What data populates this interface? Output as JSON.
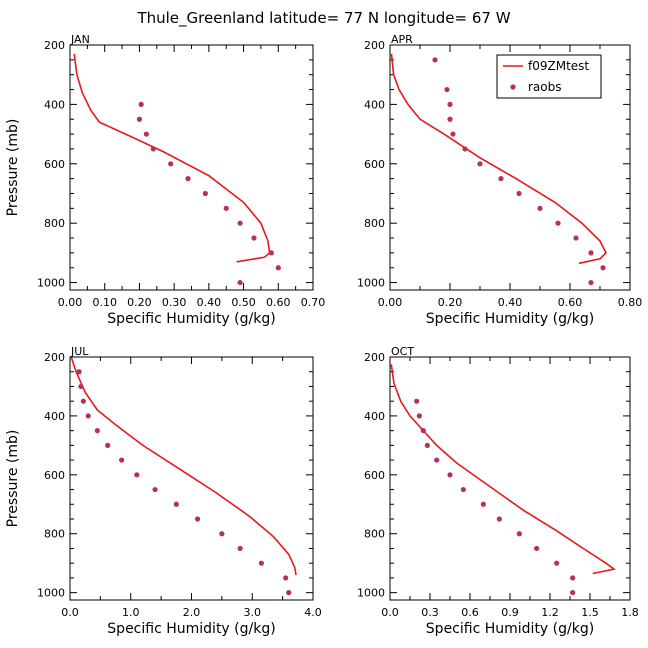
{
  "title": "Thule_Greenland   latitude= 77 N longitude= 67 W",
  "colors": {
    "model": "#e8171b",
    "obs": "#b8305a"
  },
  "legend": {
    "model": "f09ZMtest",
    "obs": "raobs"
  },
  "chart_data": [
    {
      "type": "line",
      "panel": "JAN",
      "xlabel": "Specific Humidity (g/kg)",
      "ylabel": "Pressure (mb)",
      "xlim": [
        0,
        0.7
      ],
      "ylim": [
        200,
        1025
      ],
      "xticks": [
        0,
        0.1,
        0.2,
        0.3,
        0.4,
        0.5,
        0.6,
        0.7
      ],
      "xtick_labels": [
        "0.00",
        "0.10",
        "0.20",
        "0.30",
        "0.40",
        "0.50",
        "0.60",
        "0.70"
      ],
      "yticks": [
        200,
        400,
        600,
        800,
        1000
      ],
      "ytick_labels": [
        "200",
        "400",
        "600",
        "800",
        "1000"
      ],
      "series": [
        {
          "name": "f09ZMtest",
          "kind": "line",
          "x": [
            0.012,
            0.02,
            0.035,
            0.06,
            0.085,
            0.16,
            0.27,
            0.4,
            0.5,
            0.55,
            0.57,
            0.575,
            0.56,
            0.48
          ],
          "y": [
            230,
            300,
            360,
            420,
            460,
            500,
            560,
            640,
            730,
            800,
            860,
            900,
            915,
            930
          ]
        },
        {
          "name": "raobs",
          "kind": "scatter",
          "x": [
            0.205,
            0.2,
            0.22,
            0.24,
            0.29,
            0.34,
            0.39,
            0.45,
            0.49,
            0.53,
            0.58,
            0.6,
            0.49
          ],
          "y": [
            400,
            450,
            500,
            550,
            600,
            650,
            700,
            750,
            800,
            850,
            900,
            950,
            1000
          ]
        }
      ]
    },
    {
      "type": "line",
      "panel": "APR",
      "xlabel": "Specific Humidity (g/kg)",
      "ylabel": "Pressure (mb)",
      "xlim": [
        0,
        0.8
      ],
      "ylim": [
        200,
        1025
      ],
      "xticks": [
        0,
        0.2,
        0.4,
        0.6,
        0.8
      ],
      "xtick_labels": [
        "0.00",
        "0.20",
        "0.40",
        "0.60",
        "0.80"
      ],
      "yticks": [
        200,
        400,
        600,
        800,
        1000
      ],
      "ytick_labels": [
        "200",
        "400",
        "600",
        "800",
        "1000"
      ],
      "series": [
        {
          "name": "f09ZMtest",
          "kind": "line",
          "x": [
            0.005,
            0.012,
            0.03,
            0.06,
            0.1,
            0.18,
            0.3,
            0.42,
            0.55,
            0.64,
            0.7,
            0.72,
            0.7,
            0.63
          ],
          "y": [
            230,
            300,
            350,
            400,
            450,
            500,
            580,
            650,
            730,
            800,
            860,
            900,
            920,
            935
          ]
        },
        {
          "name": "raobs",
          "kind": "scatter",
          "x": [
            0.15,
            0.19,
            0.2,
            0.2,
            0.21,
            0.25,
            0.3,
            0.37,
            0.43,
            0.5,
            0.56,
            0.62,
            0.67,
            0.71,
            0.67
          ],
          "y": [
            250,
            350,
            400,
            450,
            500,
            550,
            600,
            650,
            700,
            750,
            800,
            850,
            900,
            950,
            1000
          ]
        }
      ]
    },
    {
      "type": "line",
      "panel": "JUL",
      "xlabel": "Specific Humidity (g/kg)",
      "ylabel": "Pressure (mb)",
      "xlim": [
        0,
        4.0
      ],
      "ylim": [
        200,
        1025
      ],
      "xticks": [
        0,
        1,
        2,
        3,
        4
      ],
      "xtick_labels": [
        "0.0",
        "1.0",
        "2.0",
        "3.0",
        "4.0"
      ],
      "yticks": [
        200,
        400,
        600,
        800,
        1000
      ],
      "ytick_labels": [
        "200",
        "400",
        "600",
        "800",
        "1000"
      ],
      "series": [
        {
          "name": "f09ZMtest",
          "kind": "line",
          "x": [
            0.02,
            0.1,
            0.25,
            0.45,
            0.75,
            1.2,
            1.8,
            2.4,
            2.95,
            3.35,
            3.6,
            3.7,
            3.72
          ],
          "y": [
            200,
            250,
            320,
            380,
            430,
            500,
            580,
            660,
            740,
            810,
            870,
            915,
            940
          ]
        },
        {
          "name": "raobs",
          "kind": "scatter",
          "x": [
            0.15,
            0.18,
            0.22,
            0.3,
            0.45,
            0.62,
            0.85,
            1.1,
            1.4,
            1.75,
            2.1,
            2.5,
            2.8,
            3.15,
            3.55,
            3.6
          ],
          "y": [
            250,
            300,
            350,
            400,
            450,
            500,
            550,
            600,
            650,
            700,
            750,
            800,
            850,
            900,
            950,
            1000
          ]
        }
      ]
    },
    {
      "type": "line",
      "panel": "OCT",
      "xlabel": "Specific Humidity (g/kg)",
      "ylabel": "Pressure (mb)",
      "xlim": [
        0,
        1.8
      ],
      "ylim": [
        200,
        1025
      ],
      "xticks": [
        0,
        0.3,
        0.6,
        0.9,
        1.2,
        1.5,
        1.8
      ],
      "xtick_labels": [
        "0.0",
        "0.3",
        "0.6",
        "0.9",
        "1.2",
        "1.5",
        "1.8"
      ],
      "yticks": [
        200,
        400,
        600,
        800,
        1000
      ],
      "ytick_labels": [
        "200",
        "400",
        "600",
        "800",
        "1000"
      ],
      "series": [
        {
          "name": "f09ZMtest",
          "kind": "line",
          "x": [
            0.01,
            0.03,
            0.08,
            0.15,
            0.25,
            0.35,
            0.5,
            0.75,
            1.0,
            1.25,
            1.45,
            1.62,
            1.68,
            1.52
          ],
          "y": [
            225,
            290,
            350,
            400,
            450,
            500,
            560,
            640,
            720,
            790,
            850,
            900,
            920,
            935
          ]
        },
        {
          "name": "raobs",
          "kind": "scatter",
          "x": [
            0.2,
            0.22,
            0.25,
            0.28,
            0.35,
            0.45,
            0.55,
            0.7,
            0.82,
            0.97,
            1.1,
            1.25,
            1.37,
            1.37
          ],
          "y": [
            350,
            400,
            450,
            500,
            550,
            600,
            650,
            700,
            750,
            800,
            850,
            900,
            950,
            1000
          ]
        }
      ]
    }
  ]
}
